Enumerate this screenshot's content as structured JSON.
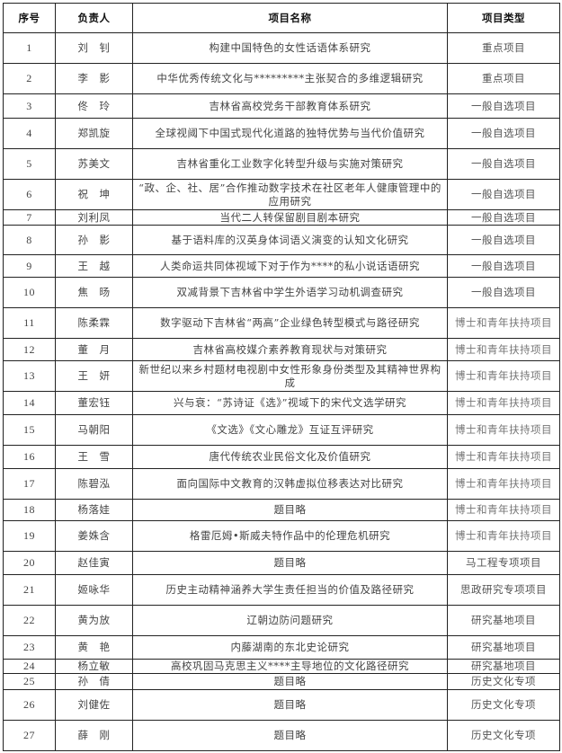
{
  "headers": [
    "序号",
    "负责人",
    "项目名称",
    "项目类型"
  ],
  "rows": [
    {
      "no": "1",
      "person": "刘　钊",
      "title": "构建中国特色的女性话语体系研究",
      "type": "重点项目"
    },
    {
      "no": "2",
      "person": "李　影",
      "title": "中华优秀传统文化与*********主张契合的多维逻辑研究",
      "type": "重点项目"
    },
    {
      "no": "3",
      "person": "佟　玲",
      "title": "吉林省高校党务干部教育体系研究",
      "type": "一般自选项目"
    },
    {
      "no": "4",
      "person": "郑凯旋",
      "title": "全球视阈下中国式现代化道路的独特优势与当代价值研究",
      "type": "一般自选项目"
    },
    {
      "no": "5",
      "person": "苏美文",
      "title": "吉林省重化工业数字化转型升级与实施对策研究",
      "type": "一般自选项目"
    },
    {
      "no": "6",
      "person": "祝　坤",
      "title": "“政、企、社、居”合作推动数字技术在社区老年人健康管理中的应用研究",
      "type": "一般自选项目"
    },
    {
      "no": "7",
      "person": "刘利凤",
      "title": "当代二人转保留剧目剧本研究",
      "type": "一般自选项目"
    },
    {
      "no": "8",
      "person": "孙　影",
      "title": "基于语料库的汉英身体词语义演变的认知文化研究",
      "type": "一般自选项目"
    },
    {
      "no": "9",
      "person": "王　越",
      "title": "人类命运共同体视域下对于作为****的私小说话语研究",
      "type": "一般自选项目"
    },
    {
      "no": "10",
      "person": "焦　旸",
      "title": "双减背景下吉林省中学生外语学习动机调查研究",
      "type": "一般自选项目"
    },
    {
      "no": "11",
      "person": "陈柔霖",
      "title": "数字驱动下吉林省“两高”企业绿色转型模式与路径研究",
      "type": "博士和青年扶持项目"
    },
    {
      "no": "12",
      "person": "董　月",
      "title": "吉林省高校媒介素养教育现状与对策研究",
      "type": "博士和青年扶持项目"
    },
    {
      "no": "13",
      "person": "王　妍",
      "title": "新世纪以来乡村题材电视剧中女性形象身份类型及其精神世界构成",
      "type": "博士和青年扶持项目"
    },
    {
      "no": "14",
      "person": "董宏钰",
      "title": "兴与衰：“苏诗证《选》”视域下的宋代文选学研究",
      "type": "博士和青年扶持项目"
    },
    {
      "no": "15",
      "person": "马朝阳",
      "title": "《文选》《文心雕龙》互证互评研究",
      "type": "博士和青年扶持项目"
    },
    {
      "no": "16",
      "person": "王　雪",
      "title": "唐代传统农业民俗文化及价值研究",
      "type": "博士和青年扶持项目"
    },
    {
      "no": "17",
      "person": "陈碧泓",
      "title": "面向国际中文教育的汉韩虚拟位移表达对比研究",
      "type": "博士和青年扶持项目"
    },
    {
      "no": "18",
      "person": "杨落娃",
      "title": "题目略",
      "type": "博士和青年扶持项目"
    },
    {
      "no": "19",
      "person": "姜姝含",
      "title": "格雷厄姆•斯威夫特作品中的伦理危机研究",
      "type": "博士和青年扶持项目"
    },
    {
      "no": "20",
      "person": "赵佳寅",
      "title": "题目略",
      "type": "马工程专项项目"
    },
    {
      "no": "21",
      "person": "姬咏华",
      "title": "历史主动精神涵养大学生责任担当的价值及路径研究",
      "type": "思政研究专项项目"
    },
    {
      "no": "22",
      "person": "黄为放",
      "title": "辽朝边防问题研究",
      "type": "研究基地项目"
    },
    {
      "no": "23",
      "person": "黄　艳",
      "title": "内藤湖南的东北史论研究",
      "type": "研究基地项目"
    },
    {
      "no": "24",
      "person": "杨立敏",
      "title": "高校巩固马克思主义****主导地位的文化路径研究",
      "type": "研究基地项目"
    },
    {
      "no": "25",
      "person": "孙　倩",
      "title": "题目略",
      "type": "历史文化专项"
    },
    {
      "no": "26",
      "person": "刘健佐",
      "title": "题目略",
      "type": "历史文化专项"
    },
    {
      "no": "27",
      "person": "薛　刚",
      "title": "题目略",
      "type": "历史文化专项"
    }
  ]
}
